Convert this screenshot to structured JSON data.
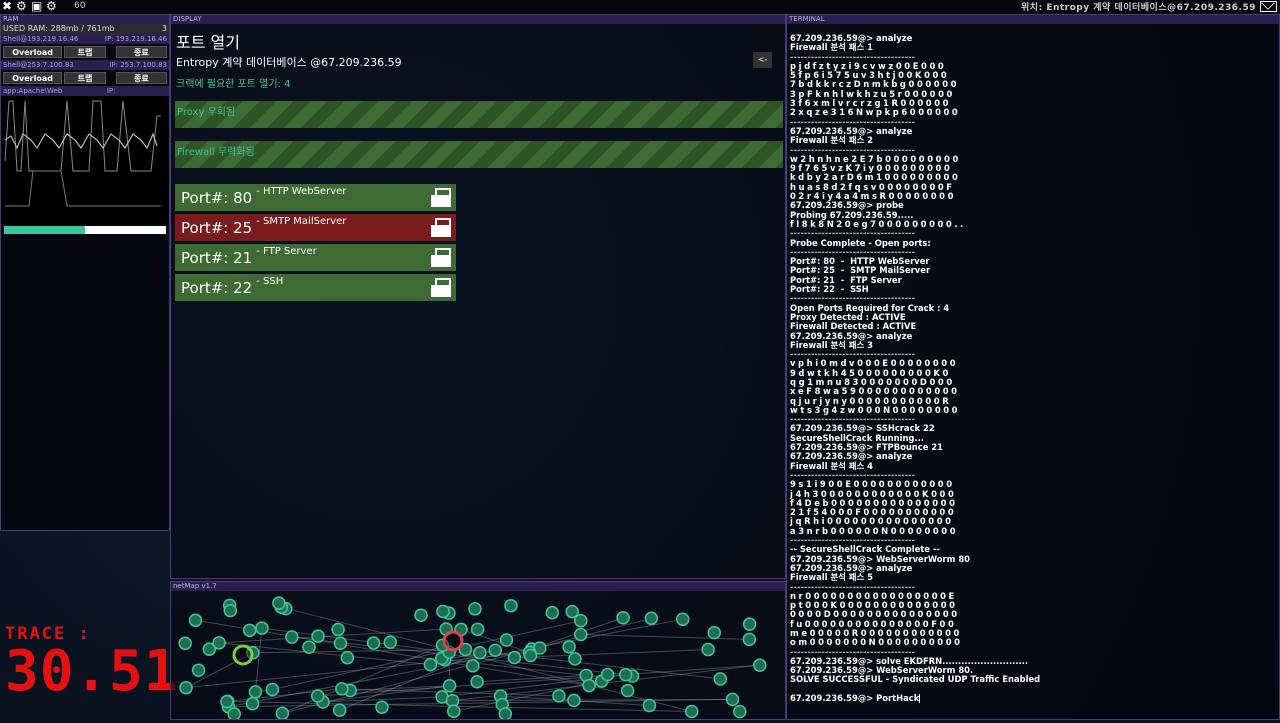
{
  "topbar": {
    "icons": [
      "close-icon",
      "gear-icon",
      "save-icon",
      "settings-icon"
    ],
    "fps": "60",
    "location": "위치: Entropy 계약 데이터베이스@67.209.236.59"
  },
  "ram": {
    "header": "RAM",
    "used_label": "USED RAM: 288mb / 761mb",
    "count": "3",
    "shells": [
      {
        "name": "Shell@193.219.16.46",
        "ip": "IP: 193.219.16.46",
        "buttons": [
          "Overload",
          "트랩",
          "종료"
        ]
      },
      {
        "name": "Shell@253.7.100.83",
        "ip": "IP: 253.7.100.83",
        "buttons": [
          "Overload",
          "트랩",
          "종료"
        ]
      }
    ],
    "app": {
      "name": "app:Apache\\Web Server\\Worm",
      "ip": "IP: 67.209.236.59",
      "progress": 0.5
    }
  },
  "trace": {
    "label": "TRACE :",
    "value": "30.51",
    "color": "#e51111"
  },
  "display": {
    "header": "DISPLAY",
    "title": "포트 열기",
    "subtitle": "Entropy 계약 데이터베이스 @67.209.236.59",
    "required": "크랙에 필요한 포트 열기: 4",
    "back": "<-",
    "bars": [
      "Proxy 우회됨",
      "Firewall 무력화됨"
    ],
    "ports": [
      {
        "label": "Port#: 80",
        "desc": "- HTTP WebServer",
        "open": true
      },
      {
        "label": "Port#: 25",
        "desc": "- SMTP MailServer",
        "open": false
      },
      {
        "label": "Port#: 21",
        "desc": "- FTP Server",
        "open": true
      },
      {
        "label": "Port#: 22",
        "desc": "- SSH",
        "open": true
      }
    ],
    "colors": {
      "open": "#3d6b33",
      "closed": "#7a1c1c"
    }
  },
  "netmap": {
    "header": "netMap v1.7"
  },
  "terminal": {
    "header": "TERMINAL",
    "lines": [
      "67.209.236.59@> analyze",
      "Firewall 분석 패스 1",
      "------------------------------------",
      "pjdfztyzi9cvwz00E000",
      "5fp6i575uv3htj00K000",
      "7bdkkrczDnmkbg000000",
      "3pFknhlwkhzu5r000000",
      "3f6xmlvrcrzg1R000000",
      "2xqze316Nwpkp6000000",
      "------------------------------------",
      "67.209.236.59@> analyze",
      "Firewall 분석 패스 2",
      "------------------------------------",
      "w2hnhne2E7b000000000",
      "9f765vzK7iy000000000",
      "kdby2arD6m1000000000",
      "huas8d2fqsv00000000F",
      "02r4iy4a4msR00000000",
      "67.209.236.59@> probe",
      "Probing 67.209.236.59.....",
      "fl8k8N20eg7000000000..",
      "------------------------------------",
      "Probe Complete - Open ports:",
      "------------------------------------",
      "Port#: 80  -  HTTP WebServer",
      "Port#: 25  -  SMTP MailServer",
      "Port#: 21  -  FTP Server",
      "Port#: 22  -  SSH",
      "------------------------------------",
      "Open Ports Required for Crack : 4",
      "Proxy Detected : ACTIVE",
      "Firewall Detected : ACTIVE",
      "67.209.236.59@> analyze",
      "Firewall 분석 패스 3",
      "------------------------------------",
      "vphi0mdv000E00000000",
      "9dwtkh45000000000K0",
      "qg1mnu830000000D000",
      "xeF8wa59000000000000",
      "qjurjyny00000000000R",
      "wts3g4zw000N00000000",
      "------------------------------------",
      "67.209.236.59@> SSHcrack 22",
      "SecureShellCrack Running...",
      "67.209.236.59@> FTPBounce 21",
      "67.209.236.59@> analyze",
      "Firewall 분석 패스 4",
      "------------------------------------",
      "9s1i900E000000000000",
      "j4h3000000000000K000",
      "f4Deb000000000000000",
      "21f54000F00000000000",
      "jqRhi000000000000000",
      "a3nrb000000N00000000",
      "------------------------------------",
      "-- SecureShellCrack Complete --",
      "67.209.236.59@> WebServerWorm 80",
      "67.209.236.59@> analyze",
      "Firewall 분석 패스 5",
      "------------------------------------",
      "nr00000000000000000E",
      "pt000K00000000000000",
      "0000D000000000000000",
      "fu000000000000000F00",
      "me00000R000000000000",
      "om0000000N0000000000",
      "------------------------------------",
      "67.209.236.59@> solve EKDFRN...........................",
      "67.209.236.59@> WebServerWorm 80.",
      "SOLVE SUCCESSFUL - Syndicated UDP Traffic Enabled",
      " ",
      "67.209.236.59@> PortHack"
    ]
  }
}
